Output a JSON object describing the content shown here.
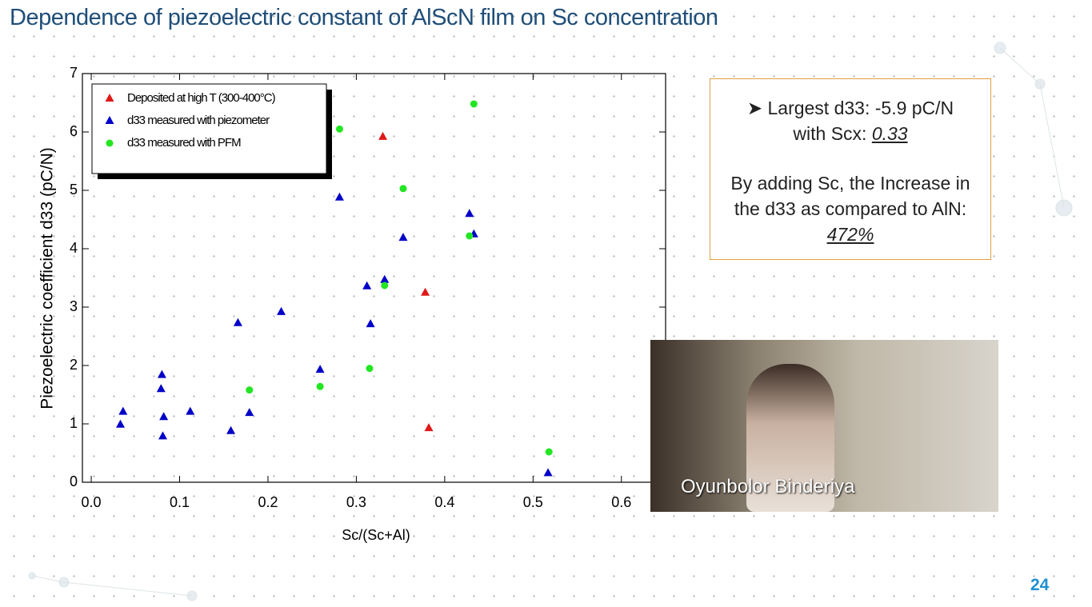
{
  "slide_title": "Dependence of piezoelectric constant of AlScN film on Sc concentration",
  "chart_data": {
    "type": "scatter",
    "x_label": "Sc/(Sc+Al)",
    "y_label": "Piezoelectric coefficient d33 (pC/N)",
    "xlim": [
      -0.01,
      0.65
    ],
    "ylim": [
      0,
      7
    ],
    "xticks": [
      {
        "value": 0,
        "label": "0.0"
      },
      0.1,
      0.2,
      0.3,
      0.4,
      0.5,
      0.6
    ],
    "yticks": [
      0,
      1,
      2,
      3,
      4,
      5,
      6,
      7
    ],
    "grid": false,
    "legend": "upper left",
    "series": [
      {
        "name": "Deposited at high T (300-400°C)",
        "color": "#e01818",
        "marker": "triangle",
        "x": [
          0.33,
          0.378,
          0.382
        ],
        "values": [
          5.92,
          3.25,
          0.93
        ]
      },
      {
        "name": "d33 measured with piezometer",
        "color": "#0000c8",
        "marker": "triangle",
        "x": [
          0.033,
          0.036,
          0.08,
          0.079,
          0.082,
          0.081,
          0.112,
          0.158,
          0.166,
          0.179,
          0.215,
          0.259,
          0.281,
          0.312,
          0.316,
          0.332,
          0.353,
          0.428,
          0.433,
          0.517
        ],
        "values": [
          0.99,
          1.21,
          1.84,
          1.6,
          1.12,
          0.79,
          1.21,
          0.88,
          2.73,
          1.19,
          2.92,
          1.93,
          4.88,
          3.36,
          2.71,
          3.47,
          4.19,
          4.6,
          4.25,
          0.16
        ]
      },
      {
        "name": "d33 measured with PFM",
        "color": "#22e622",
        "marker": "circle",
        "x": [
          0.281,
          0.433,
          0.353,
          0.428,
          0.332,
          0.315,
          0.179,
          0.259,
          0.518
        ],
        "values": [
          6.05,
          6.48,
          5.03,
          4.22,
          3.37,
          1.95,
          1.58,
          1.64,
          0.52
        ]
      }
    ]
  },
  "callout": {
    "line1": "Largest d33: -5.9 pC/N",
    "line2_prefix": "with Scx:",
    "line2_value": "0.33",
    "para": "By adding Sc, the Increase in the d33 as compared to AlN:",
    "para_value": "472%"
  },
  "speaker": "Oyunbolor Binderiya",
  "page_number": "24"
}
